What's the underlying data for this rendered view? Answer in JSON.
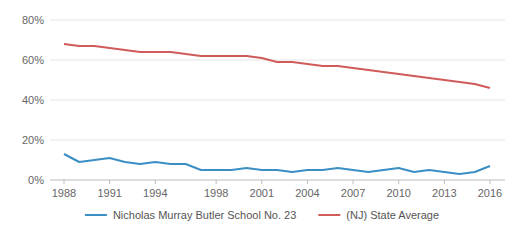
{
  "chart_data": {
    "type": "line",
    "x": [
      1988,
      1989,
      1990,
      1991,
      1992,
      1993,
      1994,
      1995,
      1996,
      1997,
      1998,
      1999,
      2000,
      2001,
      2002,
      2003,
      2004,
      2005,
      2006,
      2007,
      2008,
      2009,
      2010,
      2011,
      2012,
      2013,
      2014,
      2015,
      2016
    ],
    "series": [
      {
        "name": "Nicholas Murray Butler School No. 23",
        "color": "#3b8fc4",
        "values": [
          13,
          9,
          10,
          11,
          9,
          8,
          9,
          8,
          8,
          5,
          5,
          5,
          6,
          5,
          5,
          4,
          5,
          5,
          6,
          5,
          4,
          5,
          6,
          4,
          5,
          4,
          3,
          4,
          7
        ]
      },
      {
        "name": "(NJ) State Average",
        "color": "#cf5b5b",
        "values": [
          68,
          67,
          67,
          66,
          65,
          64,
          64,
          64,
          63,
          62,
          62,
          62,
          62,
          61,
          59,
          59,
          58,
          57,
          57,
          56,
          55,
          54,
          53,
          52,
          51,
          50,
          49,
          48,
          46
        ]
      }
    ],
    "xlim": [
      1988,
      2016
    ],
    "xticks": [
      1988,
      1991,
      1994,
      1998,
      2001,
      2004,
      2007,
      2010,
      2013,
      2016
    ],
    "ylim": [
      0,
      80
    ],
    "yticks": [
      {
        "value": 0,
        "label": "0%"
      },
      {
        "value": 20,
        "label": "20%"
      },
      {
        "value": 40,
        "label": "40%"
      },
      {
        "value": 60,
        "label": "60%"
      },
      {
        "value": 80,
        "label": "80%"
      }
    ],
    "grid": true,
    "legend": "bottom"
  }
}
